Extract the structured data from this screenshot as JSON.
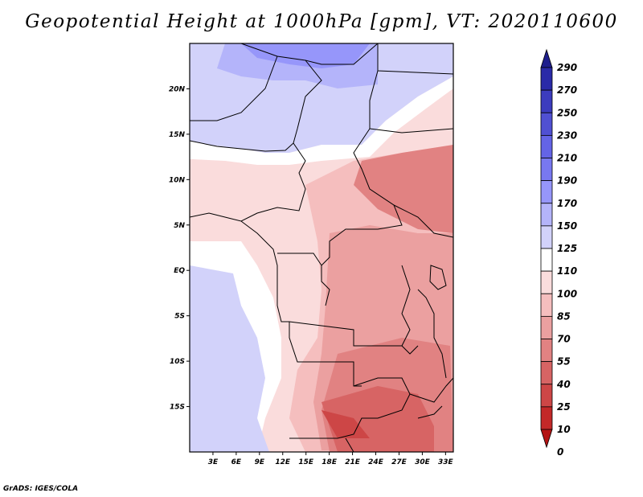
{
  "title": "Geopotential Height at 1000hPa [gpm], VT: 2020110600",
  "footer": "GrADS: IGES/COLA",
  "map": {
    "lon_range": [
      0,
      34
    ],
    "lat_range": [
      -20,
      25
    ],
    "lon_ticks": [
      "3E",
      "6E",
      "9E",
      "12E",
      "15E",
      "18E",
      "21E",
      "24E",
      "27E",
      "30E",
      "33E"
    ],
    "lat_ticks": [
      "20N",
      "15N",
      "10N",
      "5N",
      "EQ",
      "5S",
      "10S",
      "15S"
    ]
  },
  "colorbar": {
    "labels": [
      "290",
      "270",
      "250",
      "230",
      "210",
      "190",
      "170",
      "150",
      "125",
      "110",
      "100",
      "85",
      "70",
      "55",
      "40",
      "25",
      "10",
      "0"
    ],
    "colors": [
      "#1e1e8c",
      "#2a2aa8",
      "#3c3cbe",
      "#5050d2",
      "#6464e6",
      "#7878f0",
      "#9696fa",
      "#b4b4fa",
      "#d2d2fa",
      "#ffffff",
      "#fadcdc",
      "#f5bebe",
      "#eba0a0",
      "#e18282",
      "#d76464",
      "#cd4646",
      "#c32828",
      "#b41414"
    ]
  }
}
